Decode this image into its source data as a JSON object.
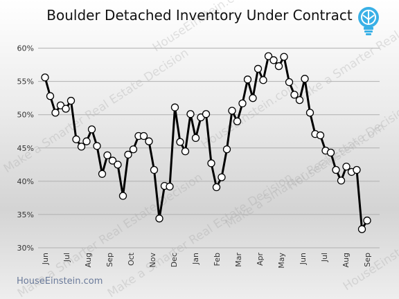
{
  "title": "Boulder Detached Inventory Under Contract",
  "footer": "HouseEinstein.com",
  "watermark": [
    "Make a Smarter Real Estate Decision",
    "HouseEinstein.com"
  ],
  "colors": {
    "line": "#000000",
    "marker_fill": "#ffffff",
    "grid": "#b0b0b0",
    "text": "#333333",
    "logo": "#39b0e6"
  },
  "icons": {
    "logo": "lightbulb-icon"
  },
  "chart_data": {
    "type": "line",
    "title": "Boulder Detached Inventory Under Contract",
    "xlabel": "",
    "ylabel": "",
    "x_ticks": [
      "Jun",
      "Jul",
      "Aug",
      "Sep",
      "Oct",
      "Nov",
      "Dec",
      "Jan",
      "Feb",
      "Mar",
      "Apr",
      "May",
      "Jun",
      "Jul",
      "Aug",
      "Sep"
    ],
    "y_ticks": [
      "30%",
      "35%",
      "40%",
      "45%",
      "50%",
      "55%",
      "60%"
    ],
    "ylim": [
      30,
      61
    ],
    "grid": true,
    "legend": "none",
    "series": [
      {
        "values": [
          55.6,
          52.8,
          50.3,
          51.4,
          50.9,
          52.1,
          46.3,
          45.2,
          46.0,
          47.8,
          45.3,
          41.1,
          43.9,
          43.1,
          42.5,
          37.8,
          44.0,
          44.8,
          46.8,
          46.8,
          46.0,
          41.7,
          34.4,
          39.3,
          39.2,
          51.1,
          45.9,
          44.5,
          50.1,
          46.5,
          49.6,
          50.1,
          42.7,
          39.1,
          40.6,
          44.8,
          50.6,
          49.0,
          51.7,
          55.3,
          52.5,
          56.9,
          55.2,
          58.8,
          58.2,
          57.3,
          58.7,
          54.9,
          53.0,
          52.2,
          55.4,
          50.3,
          47.1,
          46.9,
          44.6,
          44.3,
          41.7,
          40.1,
          42.2,
          41.4,
          41.7,
          32.8,
          34.1
        ]
      }
    ]
  }
}
